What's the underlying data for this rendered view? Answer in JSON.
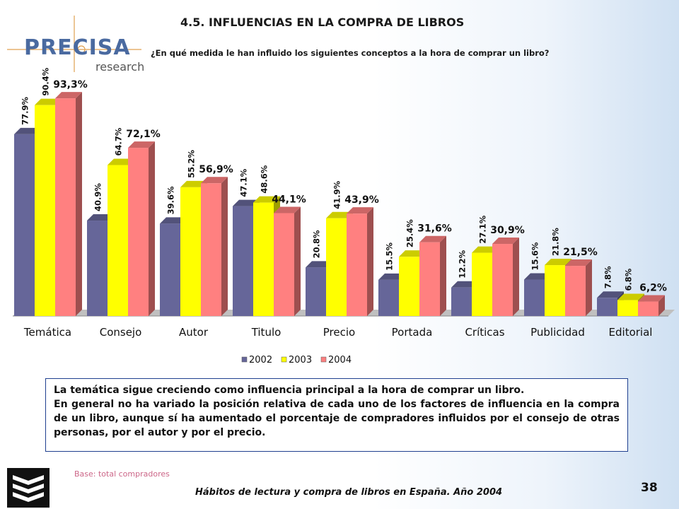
{
  "header": {
    "logo_text": "PRECISA",
    "logo_sub": "research",
    "section_title": "4.5. INFLUENCIAS EN LA COMPRA DE LIBROS",
    "question": "¿En qué medida le han influido los siguientes conceptos a la hora de comprar un libro?"
  },
  "chart_data": {
    "type": "bar",
    "categories": [
      "Temática",
      "Consejo",
      "Autor",
      "Titulo",
      "Precio",
      "Portada",
      "Críticas",
      "Publicidad",
      "Editorial"
    ],
    "series": [
      {
        "name": "2002",
        "color": "#666699",
        "values": [
          77.9,
          40.9,
          39.6,
          47.1,
          20.8,
          15.5,
          12.2,
          15.6,
          7.8
        ],
        "labels": [
          "77.9%",
          "40.9%",
          "39.6%",
          "47.1%",
          "20.8%",
          "15.5%",
          "12.2%",
          "15.6%",
          "7.8%"
        ]
      },
      {
        "name": "2003",
        "color": "#ffff00",
        "values": [
          90.4,
          64.7,
          55.2,
          48.6,
          41.9,
          25.4,
          27.1,
          21.8,
          6.8
        ],
        "labels": [
          "90.4%",
          "64.7%",
          "55.2%",
          "48.6%",
          "41.9%",
          "25.4%",
          "27.1%",
          "21.8%",
          "6.8%"
        ]
      },
      {
        "name": "2004",
        "color": "#ff8080",
        "values": [
          93.3,
          72.1,
          56.9,
          44.1,
          43.9,
          31.6,
          30.9,
          21.5,
          6.2
        ],
        "labels": [
          "93,3%",
          "72,1%",
          "56,9%",
          "44,1%",
          "43,9%",
          "31,6%",
          "30,9%",
          "21,5%",
          "6,2%"
        ]
      }
    ],
    "ylim": [
      0,
      100
    ],
    "grid": false,
    "legend_position": "bottom"
  },
  "summary": {
    "line1": "La temática sigue creciendo como influencia principal a la hora de comprar un libro.",
    "line2": "En general no ha variado la posición relativa de cada uno de los factores de influencia en la compra de un libro, aunque sí ha aumentado el porcentaje de compradores influidos por el consejo de otras personas, por el autor y por el precio."
  },
  "footer": {
    "base_note": "Base: total compradores",
    "text": "Hábitos de lectura y compra de libros en España. Año 2004",
    "page_number": "38"
  }
}
